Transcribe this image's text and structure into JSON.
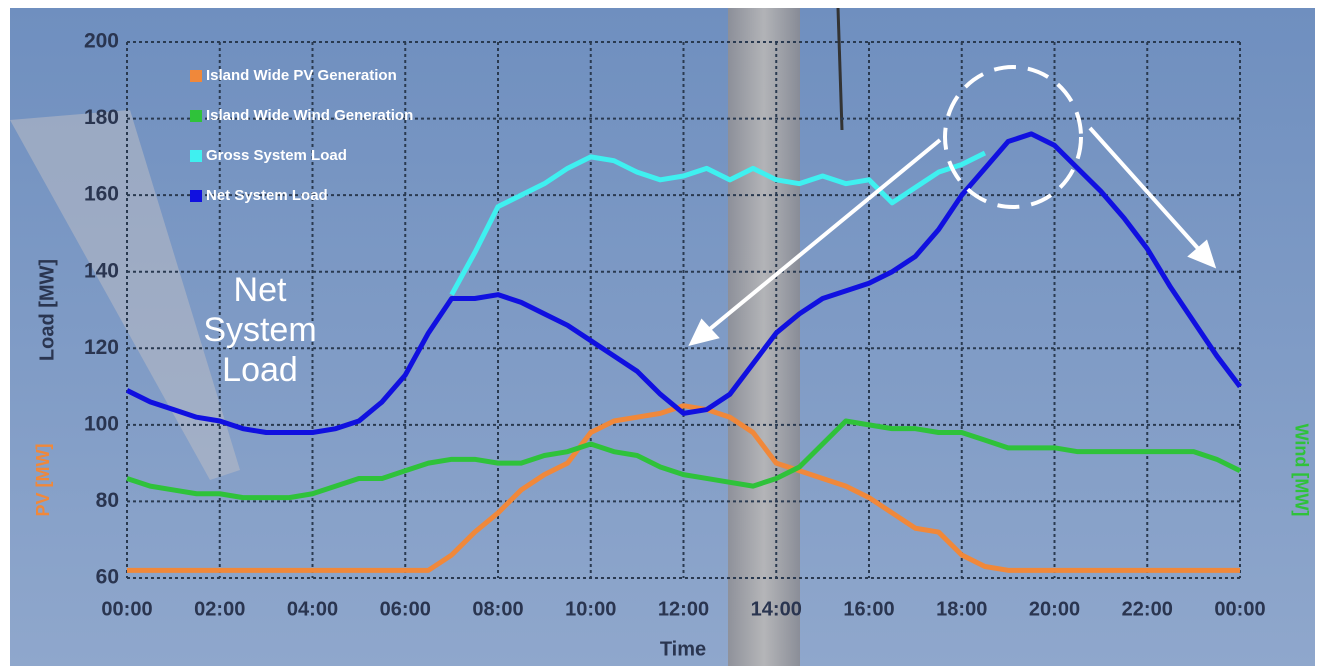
{
  "chart_data": {
    "type": "line",
    "xlabel": "Time",
    "ylabel": "Load [MW]",
    "y2label_left": "PV [MW]",
    "y2label_right": "Wind [MW]",
    "annotation": "Net System Load",
    "x": [
      0,
      0.5,
      1,
      1.5,
      2,
      2.5,
      3,
      3.5,
      4,
      4.5,
      5,
      5.5,
      6,
      6.5,
      7,
      7.5,
      8,
      8.5,
      9,
      9.5,
      10,
      10.5,
      11,
      11.5,
      12,
      12.5,
      13,
      13.5,
      14,
      14.5,
      15,
      15.5,
      16,
      16.5,
      17,
      17.5,
      18,
      18.5,
      19,
      19.5,
      20,
      20.5,
      21,
      21.5,
      22,
      22.5,
      23,
      23.5,
      24
    ],
    "xlim": [
      0,
      24
    ],
    "xticks": [
      {
        "value": 0,
        "label": "00:00"
      },
      {
        "value": 2,
        "label": "02:00"
      },
      {
        "value": 4,
        "label": "04:00"
      },
      {
        "value": 6,
        "label": "06:00"
      },
      {
        "value": 8,
        "label": "08:00"
      },
      {
        "value": 10,
        "label": "10:00"
      },
      {
        "value": 12,
        "label": "12:00"
      },
      {
        "value": 14,
        "label": "14:00"
      },
      {
        "value": 16,
        "label": "16:00"
      },
      {
        "value": 18,
        "label": "18:00"
      },
      {
        "value": 20,
        "label": "20:00"
      },
      {
        "value": 22,
        "label": "22:00"
      },
      {
        "value": 24,
        "label": "00:00"
      }
    ],
    "ylim": [
      60,
      200
    ],
    "yticks": [
      60,
      80,
      100,
      120,
      140,
      160,
      180,
      200
    ],
    "grid": true,
    "series": [
      {
        "name": "Island Wide PV Generation",
        "color": "#f0883a",
        "values": [
          62,
          62,
          62,
          62,
          62,
          62,
          62,
          62,
          62,
          62,
          62,
          62,
          62,
          62,
          66,
          72,
          77,
          83,
          87,
          90,
          98,
          101,
          102,
          103,
          105,
          104,
          102,
          98,
          90,
          88,
          86,
          84,
          81,
          77,
          73,
          72,
          66,
          63,
          62,
          62,
          62,
          62,
          62,
          62,
          62,
          62,
          62,
          62,
          62
        ]
      },
      {
        "name": "Island Wide Wind Generation",
        "color": "#2fc23a",
        "values": [
          86,
          84,
          83,
          82,
          82,
          81,
          81,
          81,
          82,
          84,
          86,
          86,
          88,
          90,
          91,
          91,
          90,
          90,
          92,
          93,
          95,
          93,
          92,
          89,
          87,
          86,
          85,
          84,
          86,
          89,
          95,
          101,
          100,
          99,
          99,
          98,
          98,
          96,
          94,
          94,
          94,
          93,
          93,
          93,
          93,
          93,
          93,
          91,
          88
        ]
      },
      {
        "name": "Gross System Load",
        "color": "#3ff0f0",
        "values": [
          null,
          null,
          null,
          null,
          null,
          null,
          null,
          null,
          null,
          null,
          null,
          null,
          null,
          null,
          134,
          145,
          157,
          160,
          163,
          167,
          170,
          169,
          166,
          164,
          165,
          167,
          164,
          167,
          164,
          163,
          165,
          163,
          164,
          158,
          162,
          166,
          168,
          171,
          null,
          null,
          null,
          null,
          null,
          null,
          null,
          null,
          null,
          null,
          null
        ]
      },
      {
        "name": "Net System Load",
        "color": "#1010e0",
        "values": [
          109,
          106,
          104,
          102,
          101,
          99,
          98,
          98,
          98,
          99,
          101,
          106,
          113,
          124,
          133,
          133,
          134,
          132,
          129,
          126,
          122,
          118,
          114,
          108,
          103,
          104,
          108,
          116,
          124,
          129,
          133,
          135,
          137,
          140,
          144,
          151,
          160,
          167,
          174,
          176,
          173,
          167,
          161,
          154,
          146,
          136,
          127,
          118,
          110
        ]
      }
    ]
  }
}
